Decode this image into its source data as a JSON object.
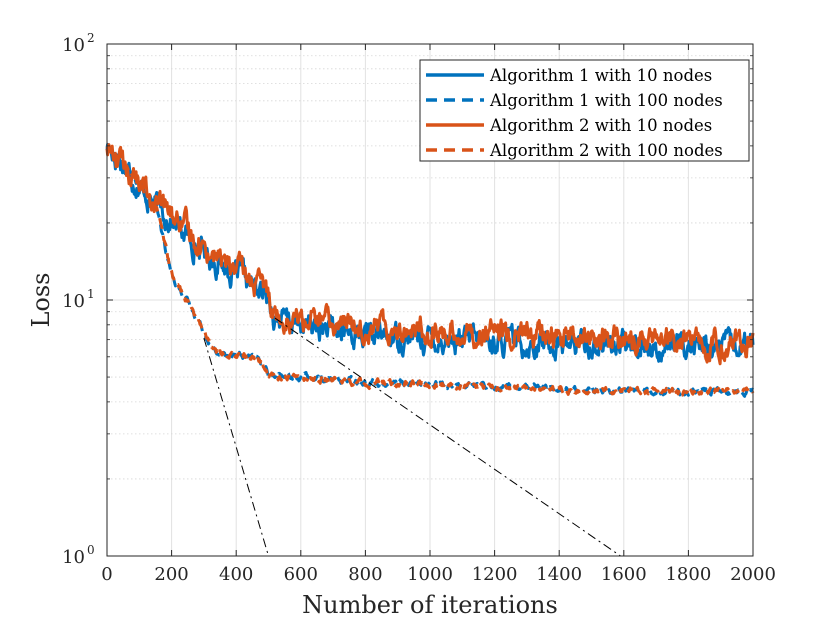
{
  "chart_data": {
    "type": "line",
    "title": "",
    "xlabel": "Number of iterations",
    "ylabel": "Loss",
    "xlim": [
      0,
      2000
    ],
    "ylim": [
      1,
      100
    ],
    "yscale": "log",
    "grid": true,
    "legend_position": "top-right",
    "xticks": [
      0,
      200,
      400,
      600,
      800,
      1000,
      1200,
      1400,
      1600,
      1800,
      2000
    ],
    "xtick_labels": [
      "0",
      "200",
      "400",
      "600",
      "800",
      "1000",
      "1200",
      "1400",
      "1600",
      "1800",
      "2000"
    ],
    "yticks": [
      1,
      10,
      100
    ],
    "ytick_labels": [
      {
        "base": "10",
        "exp": "0"
      },
      {
        "base": "10",
        "exp": "1"
      },
      {
        "base": "10",
        "exp": "2"
      }
    ],
    "series": [
      {
        "name": "Algorithm 1 with 10 nodes",
        "color": "#0072BD",
        "style": "solid",
        "x": [
          0,
          50,
          100,
          150,
          200,
          250,
          300,
          350,
          400,
          450,
          500,
          520,
          550,
          600,
          700,
          800,
          900,
          1000,
          1100,
          1200,
          1300,
          1400,
          1500,
          1600,
          1700,
          1800,
          1900,
          2000
        ],
        "y": [
          40,
          34,
          28,
          23.5,
          20.5,
          17.5,
          15.5,
          13.8,
          12.6,
          11.3,
          10.2,
          8.6,
          8.3,
          8.0,
          7.5,
          7.3,
          7.2,
          7.05,
          6.95,
          6.85,
          6.8,
          6.75,
          6.7,
          6.65,
          6.6,
          6.6,
          6.55,
          6.55
        ],
        "noise": 0.03
      },
      {
        "name": "Algorithm 1 with 100 nodes",
        "color": "#0072BD",
        "style": "dashed",
        "x": [
          0,
          50,
          100,
          150,
          200,
          250,
          300,
          320,
          340,
          400,
          450,
          480,
          500,
          600,
          700,
          800,
          1000,
          1200,
          1400,
          1600,
          1800,
          2000
        ],
        "y": [
          40,
          34,
          28,
          23.5,
          12.5,
          9.8,
          7.6,
          6.8,
          6.2,
          6.1,
          6.0,
          5.7,
          5.1,
          5.0,
          4.9,
          4.8,
          4.7,
          4.6,
          4.5,
          4.45,
          4.4,
          4.4
        ],
        "noise": 0.008
      },
      {
        "name": "Algorithm 2 with 10 nodes",
        "color": "#D95319",
        "style": "solid",
        "x": [
          0,
          50,
          100,
          150,
          200,
          250,
          300,
          350,
          400,
          450,
          500,
          520,
          550,
          600,
          700,
          800,
          900,
          1000,
          1100,
          1200,
          1300,
          1400,
          1500,
          1600,
          1700,
          1800,
          1900,
          2000
        ],
        "y": [
          40,
          34,
          28.5,
          24,
          21.5,
          18.5,
          16.3,
          14.5,
          13.1,
          11.8,
          10.7,
          9.1,
          8.7,
          8.4,
          8.1,
          7.95,
          7.8,
          7.6,
          7.45,
          7.35,
          7.25,
          7.15,
          7.05,
          6.95,
          6.9,
          6.85,
          6.8,
          6.75
        ],
        "noise": 0.03
      },
      {
        "name": "Algorithm 2 with 100 nodes",
        "color": "#D95319",
        "style": "dashed",
        "x": [
          0,
          50,
          100,
          150,
          200,
          250,
          300,
          320,
          340,
          400,
          450,
          480,
          500,
          600,
          700,
          800,
          1000,
          1200,
          1400,
          1600,
          1800,
          2000
        ],
        "y": [
          40,
          34,
          28.5,
          24,
          12.5,
          9.8,
          7.6,
          6.8,
          6.2,
          6.1,
          6.0,
          5.7,
          5.05,
          4.95,
          4.85,
          4.75,
          4.65,
          4.55,
          4.48,
          4.42,
          4.38,
          4.38
        ],
        "noise": 0.008
      }
    ],
    "reference_lines": [
      {
        "name": "reference-slope-100-nodes",
        "color": "#000000",
        "style": "dashdot",
        "x": [
          300,
          500
        ],
        "y": [
          7.1,
          1.0
        ]
      },
      {
        "name": "reference-slope-10-nodes",
        "color": "#000000",
        "style": "dashdot",
        "x": [
          520,
          1590
        ],
        "y": [
          8.5,
          1.0
        ]
      }
    ]
  }
}
